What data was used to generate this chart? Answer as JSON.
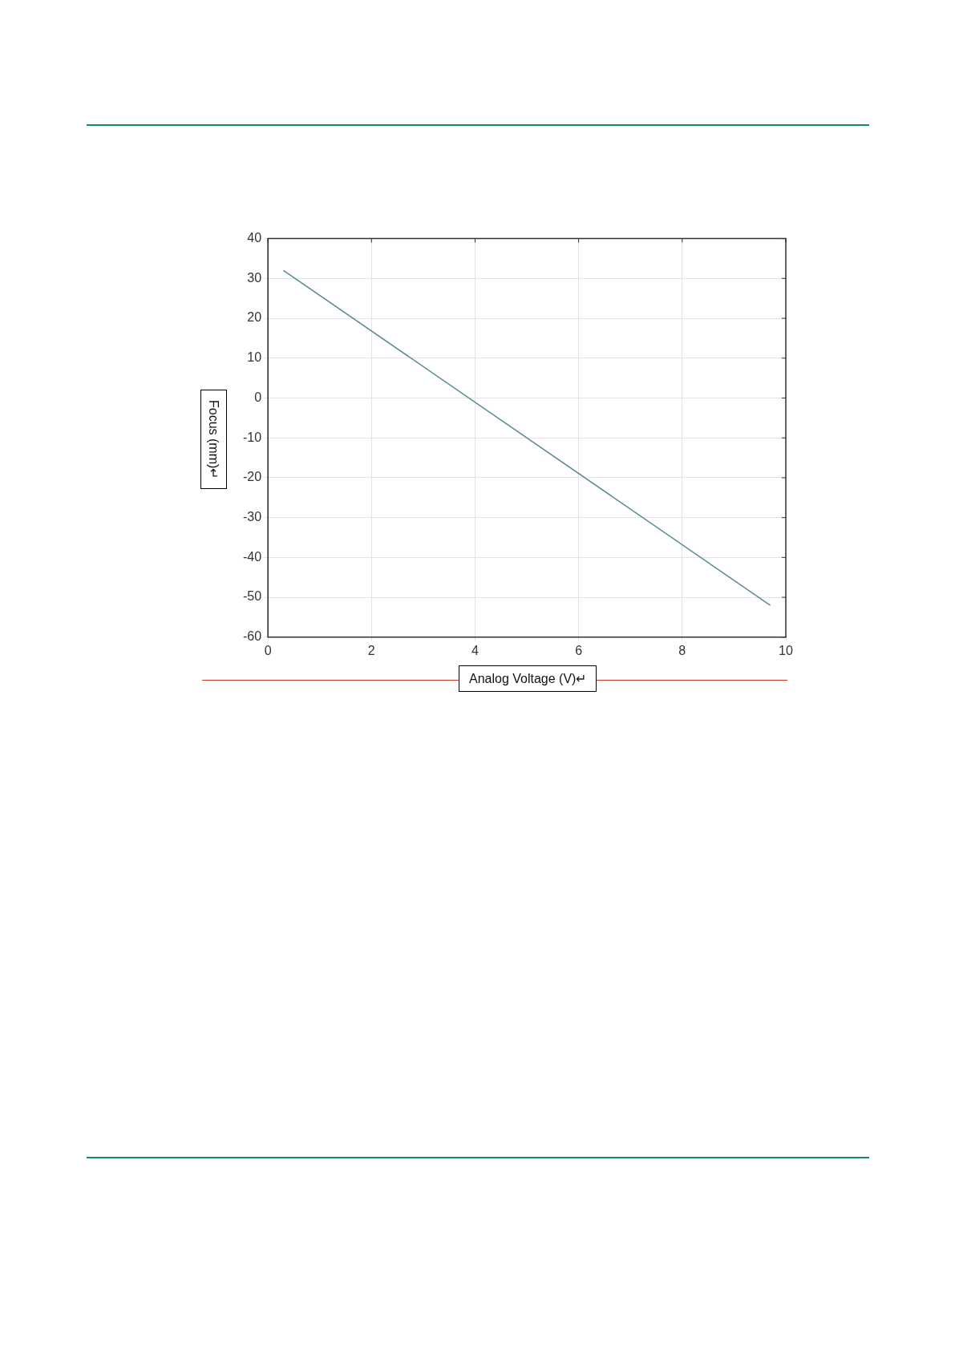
{
  "chart_data": {
    "type": "line",
    "xlabel": "Analog Voltage (V)↵",
    "ylabel": "Focus (mm)↵",
    "x": [
      0.3,
      9.7
    ],
    "series": [
      {
        "color": "#5b8a94",
        "values": [
          32,
          -52
        ]
      }
    ],
    "xlim": [
      0,
      10
    ],
    "xticks": [
      0,
      2,
      4,
      6,
      8,
      10
    ],
    "ylim": [
      -60,
      40
    ],
    "yticks": [
      -60,
      -50,
      -40,
      -30,
      -20,
      -10,
      0,
      10,
      20,
      30,
      40
    ],
    "grid": true,
    "legend": false,
    "marker": "none",
    "line_style": "solid"
  }
}
